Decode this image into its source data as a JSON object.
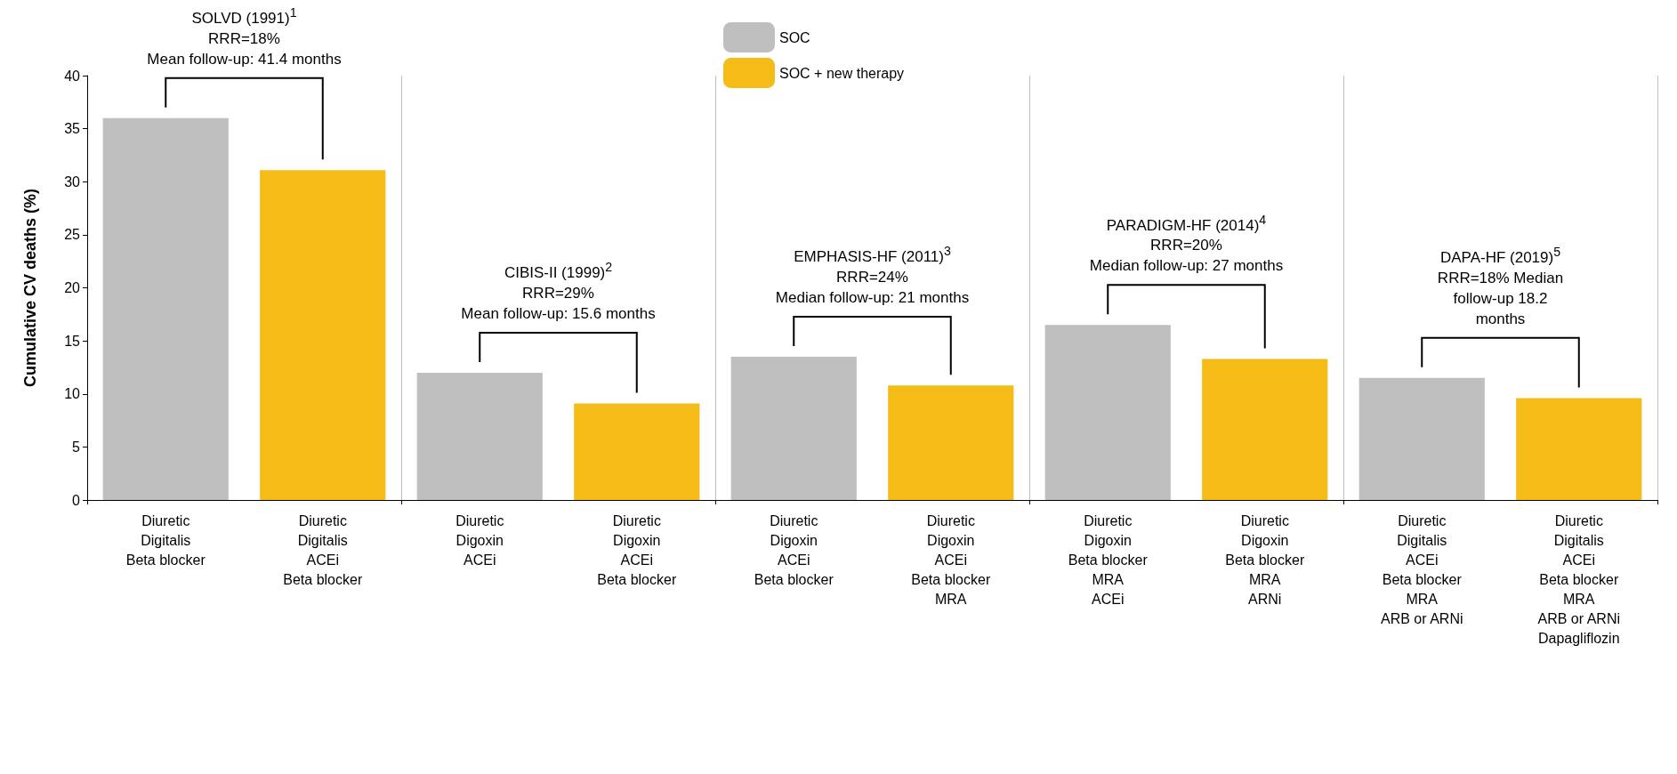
{
  "chart_data": {
    "type": "bar",
    "ylabel": "Cumulative CV deaths (%)",
    "categories": [
      "Diuretic\nDigitalis\nBeta blocker",
      "Diuretic\nDigitalis\nACEi\nBeta blocker",
      "Diuretic\nDigoxin\nACEi",
      "Diuretic\nDigoxin\nACEi\nBeta blocker",
      "Diuretic\nDigoxin\nACEi\nBeta blocker",
      "Diuretic\nDigoxin\nACEi\nBeta blocker\nMRA",
      "Diuretic\nDigoxin\nBeta blocker\nMRA\nACEi",
      "Diuretic\nDigoxin\nBeta blocker\nMRA\nARNi",
      "Diuretic\nDigitalis\nACEi\nBeta blocker\nMRA\nARB or ARNi",
      "Diuretic\nDigitalis\nACEi\nBeta blocker\nMRA\nARB or ARNi\nDapagliflozin"
    ],
    "series": [
      {
        "name": "SOC",
        "color": "#bfbfbf",
        "values": [
          36,
          null,
          12,
          null,
          13.5,
          null,
          16.5,
          null,
          11.5,
          null
        ]
      },
      {
        "name": "SOC + new therapy",
        "color": "#f5bc18",
        "values": [
          null,
          31.1,
          null,
          9.1,
          null,
          10.8,
          null,
          13.3,
          null,
          9.6
        ]
      }
    ],
    "ylim": [
      0,
      40
    ],
    "yticks": [
      0,
      5,
      10,
      15,
      20,
      25,
      30,
      35,
      40
    ],
    "grid": "x",
    "legend": "top",
    "annotations": [
      "SOLVD (1991)$^{1}$\nRRR=18%\nMean follow-up: 41.4 months",
      "CIBIS-II (1999)$^{2}$\nRRR=29%\nMean follow-up: 15.6 months",
      "EMPHASIS-HF (2011)$^{3}$\nRRR=24%\nMedian follow-up: 21 months",
      "PARADIGM-HF (2014)$^{4}$\nRRR=20%\nMedian follow-up: 27 months",
      "DAPA-HF (2019)$^{5}$\nRRR=18% Median\nfollow-up 18.2\nmonths"
    ]
  }
}
